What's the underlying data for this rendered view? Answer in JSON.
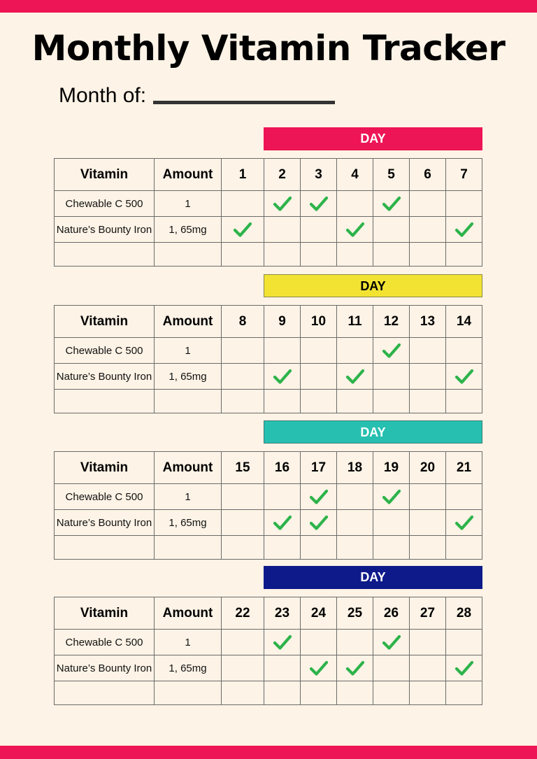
{
  "title": "Monthly Vitamin Tracker",
  "month_label": "Month of:",
  "colors": {
    "frame": "#ed1556",
    "check": "#2db34a",
    "banners": [
      "#ed1556",
      "#f2e333",
      "#27bfb0",
      "#0e1a8a"
    ],
    "banner_text": [
      "#ffffff",
      "#000000",
      "#ffffff",
      "#ffffff"
    ]
  },
  "headers": {
    "vitamin": "Vitamin",
    "amount": "Amount"
  },
  "sections": [
    {
      "banner": "DAY",
      "days": [
        "1",
        "2",
        "3",
        "4",
        "5",
        "6",
        "7"
      ],
      "rows": [
        {
          "vitamin": "Chewable C 500",
          "amount": "1",
          "checks": [
            false,
            true,
            true,
            false,
            true,
            false,
            false
          ]
        },
        {
          "vitamin": "Nature’s Bounty Iron",
          "amount": "1, 65mg",
          "checks": [
            true,
            false,
            false,
            true,
            false,
            false,
            true
          ]
        },
        {
          "vitamin": "",
          "amount": "",
          "checks": [
            false,
            false,
            false,
            false,
            false,
            false,
            false
          ]
        }
      ]
    },
    {
      "banner": "DAY",
      "days": [
        "8",
        "9",
        "10",
        "11",
        "12",
        "13",
        "14"
      ],
      "rows": [
        {
          "vitamin": "Chewable C 500",
          "amount": "1",
          "checks": [
            false,
            false,
            false,
            false,
            true,
            false,
            false
          ]
        },
        {
          "vitamin": "Nature’s Bounty Iron",
          "amount": "1, 65mg",
          "checks": [
            false,
            true,
            false,
            true,
            false,
            false,
            true
          ]
        },
        {
          "vitamin": "",
          "amount": "",
          "checks": [
            false,
            false,
            false,
            false,
            false,
            false,
            false
          ]
        }
      ]
    },
    {
      "banner": "DAY",
      "days": [
        "15",
        "16",
        "17",
        "18",
        "19",
        "20",
        "21"
      ],
      "rows": [
        {
          "vitamin": "Chewable C 500",
          "amount": "1",
          "checks": [
            false,
            false,
            true,
            false,
            true,
            false,
            false
          ]
        },
        {
          "vitamin": "Nature’s Bounty Iron",
          "amount": "1, 65mg",
          "checks": [
            false,
            true,
            true,
            false,
            false,
            false,
            true
          ]
        },
        {
          "vitamin": "",
          "amount": "",
          "checks": [
            false,
            false,
            false,
            false,
            false,
            false,
            false
          ]
        }
      ]
    },
    {
      "banner": "DAY",
      "days": [
        "22",
        "23",
        "24",
        "25",
        "26",
        "27",
        "28"
      ],
      "rows": [
        {
          "vitamin": "Chewable C 500",
          "amount": "1",
          "checks": [
            false,
            true,
            false,
            false,
            true,
            false,
            false
          ]
        },
        {
          "vitamin": "Nature’s Bounty Iron",
          "amount": "1, 65mg",
          "checks": [
            false,
            false,
            true,
            true,
            false,
            false,
            true
          ]
        },
        {
          "vitamin": "",
          "amount": "",
          "checks": [
            false,
            false,
            false,
            false,
            false,
            false,
            false
          ]
        }
      ]
    }
  ]
}
